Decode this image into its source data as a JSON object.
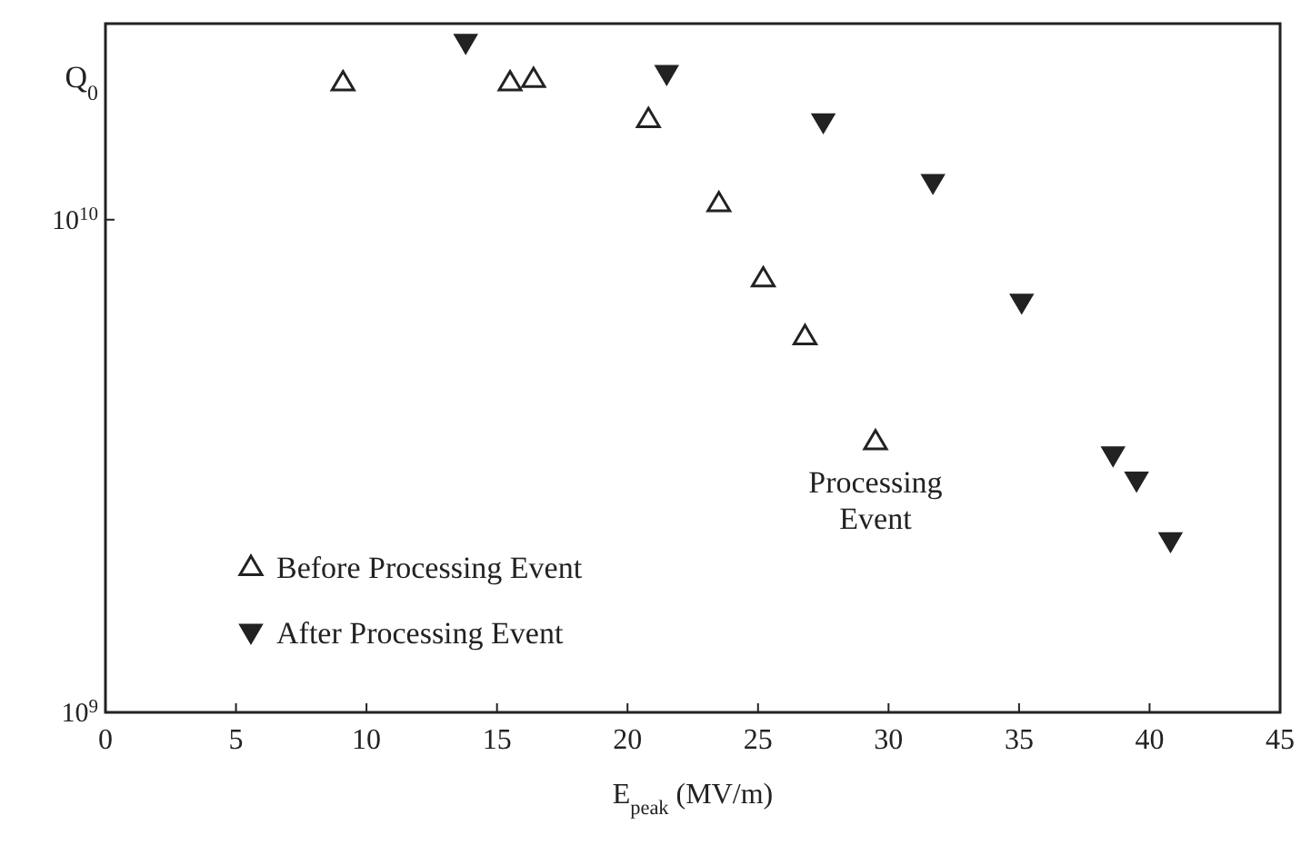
{
  "chart_data": {
    "type": "scatter",
    "xlabel": "E$_{peak}$ (MV/m)",
    "ylabel": "Q$_{0}$",
    "log": "y",
    "xlim": [
      0,
      45
    ],
    "xticks": [
      0,
      5,
      10,
      15,
      20,
      25,
      30,
      35,
      40,
      45
    ],
    "ylim": [
      1000000000.0,
      25000000000.0
    ],
    "yticks": [
      {
        "value": 1000000000.0,
        "label": "10$^{9}$"
      },
      {
        "value": 10000000000.0,
        "label": "10$^{10}$"
      }
    ],
    "grid": false,
    "legend": "bottom left",
    "series": [
      {
        "name": "Before Processing Event",
        "color": "#222222",
        "marker": "triangle",
        "x": [
          9.1,
          15.5,
          16.4,
          20.8,
          23.5,
          25.2,
          26.8,
          29.5
        ],
        "values": [
          19000000000.0,
          19000000000.0,
          19300000000.0,
          16000000000.0,
          10800000000.0,
          7600000000.0,
          5800000000.0,
          3550000000.0
        ]
      },
      {
        "name": "After Processing Event",
        "color": "#222222",
        "marker": "triangle-down",
        "x": [
          13.8,
          21.5,
          27.5,
          31.7,
          35.1,
          38.6,
          39.5,
          40.8
        ],
        "values": [
          22900000000.0,
          19800000000.0,
          15800000000.0,
          11900000000.0,
          6800000000.0,
          3330000000.0,
          2960000000.0,
          2230000000.0
        ]
      }
    ],
    "annotations": [
      {
        "text": "Processing Event",
        "x": 29.5,
        "y": 3550000000.0
      }
    ]
  }
}
